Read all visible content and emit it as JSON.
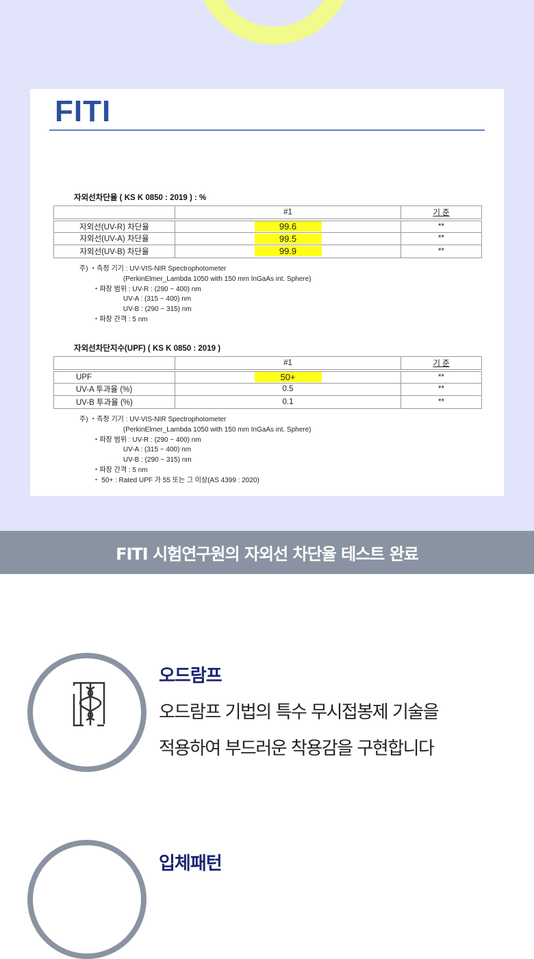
{
  "document": {
    "logo": "FITI",
    "table1": {
      "title": "자외선차단율 ( KS K 0850 : 2019 ) : %",
      "headers": [
        "",
        "#1",
        "기 준"
      ],
      "rows": [
        [
          "자외선(UV-R) 차단율",
          "99.6",
          "**"
        ],
        [
          "자외선(UV-A) 차단율",
          "99.5",
          "**"
        ],
        [
          "자외선(UV-B) 차단율",
          "99.9",
          "**"
        ]
      ]
    },
    "notes1": "주) ・측정 기기 : UV-VIS-NIR Spectrophotometer\n                       (PerkinElmer_Lambda 1050 with 150 mm InGaAs int. Sphere)\n       ・파장 범위 : UV-R : (290 ~ 400) nm\n                       UV-A : (315 ~ 400) nm\n                       UV-B : (290 ~ 315) nm\n       ・파장 간격 : 5 nm",
    "table2": {
      "title": "자외선차단지수(UPF) ( KS K 0850 : 2019 )",
      "headers": [
        "",
        "#1",
        "기 준"
      ],
      "rows": [
        [
          "UPF",
          "50+",
          "**"
        ],
        [
          "UV-A 투과율 (%)",
          "0.5",
          "**"
        ],
        [
          "UV-B 투과율 (%)",
          "0.1",
          "**"
        ]
      ]
    },
    "notes2": "주) ・측정 기기 : UV-VIS-NIR Spectrophotometer\n                       (PerkinElmer_Lambda 1050 with 150 mm InGaAs int. Sphere)\n       ・파장 범위 : UV-R : (290 ~ 400) nm\n                       UV-A : (315 ~ 400) nm\n                       UV-B : (290 ~ 315) nm\n       ・파장 간격 : 5 nm\n       ・ 50+ : Rated UPF 가 55 또는 그 이상(AS 4399 : 2020)"
  },
  "banner": "FITI 시험연구원의 자외선 차단율 테스트 완료",
  "features": [
    {
      "title": "오드람프",
      "desc1": "오드람프 기법의 특수 무시접봉제 기술을",
      "desc2": "적용하여 부드러운 착용감을 구현합니다",
      "icon": "stitch-icon"
    },
    {
      "title": "입체패턴",
      "icon": "pattern-icon"
    }
  ],
  "colors": {
    "background": "#e1e4fb",
    "ring": "#f2fa8c",
    "banner": "#8a93a1",
    "highlight": "#ffff1a",
    "title": "#1a2570"
  }
}
